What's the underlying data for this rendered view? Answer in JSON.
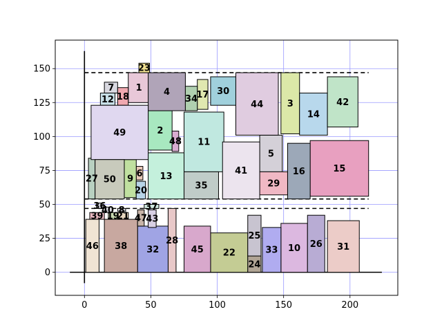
{
  "chart_data": {
    "type": "diagram",
    "title": "",
    "xlabel": "",
    "ylabel": "",
    "xlim": [
      -22,
      236
    ],
    "ylim": [
      -17,
      171
    ],
    "grid": true,
    "xticks": [
      0,
      50,
      100,
      150,
      200
    ],
    "yticks": [
      0,
      25,
      50,
      75,
      100,
      125,
      150
    ],
    "dashed_lines": [
      {
        "x0": 0,
        "x1": 214,
        "y": 147
      },
      {
        "x0": 0,
        "x1": 214,
        "y": 54
      },
      {
        "x0": 0,
        "x1": 214,
        "y": 47
      }
    ],
    "solid_lines": [
      {
        "x0": 0,
        "y0": -8,
        "x1": 0,
        "y1": 163
      },
      {
        "x0": -11,
        "y0": 0,
        "x1": 224,
        "y1": 0
      }
    ],
    "rects": [
      {
        "id": "1",
        "x": 33,
        "y": 125,
        "w": 16,
        "h": 22,
        "color": "#e8c8d8"
      },
      {
        "id": "2",
        "x": 48,
        "y": 90,
        "w": 18,
        "h": 29,
        "color": "#a8e8c0"
      },
      {
        "id": "3",
        "x": 148,
        "y": 102,
        "w": 14,
        "h": 45,
        "color": "#dce8a8"
      },
      {
        "id": "4",
        "x": 48,
        "y": 119,
        "w": 28,
        "h": 28,
        "color": "#b0a4b8"
      },
      {
        "id": "5",
        "x": 132,
        "y": 74,
        "w": 17,
        "h": 27,
        "color": "#d4d0d8"
      },
      {
        "id": "6",
        "x": 39,
        "y": 68,
        "w": 5,
        "h": 10,
        "color": "#e8c8b8"
      },
      {
        "id": "7",
        "x": 15,
        "y": 132,
        "w": 10,
        "h": 8,
        "color": "#d8d8e0"
      },
      {
        "id": "8",
        "x": 25,
        "y": 45,
        "w": 6,
        "h": 2,
        "color": "#e0e0e8"
      },
      {
        "id": "9",
        "x": 30,
        "y": 55,
        "w": 9,
        "h": 28,
        "color": "#c0e0a0"
      },
      {
        "id": "10",
        "x": 148,
        "y": 0,
        "w": 20,
        "h": 36,
        "color": "#dcb8e0"
      },
      {
        "id": "11",
        "x": 75,
        "y": 74,
        "w": 30,
        "h": 44,
        "color": "#c0e8e0"
      },
      {
        "id": "12",
        "x": 12,
        "y": 123,
        "w": 11,
        "h": 9,
        "color": "#c8e0e8"
      },
      {
        "id": "13",
        "x": 48,
        "y": 54,
        "w": 27,
        "h": 34,
        "color": "#c4f0dc"
      },
      {
        "id": "14",
        "x": 162,
        "y": 101,
        "w": 21,
        "h": 31,
        "color": "#b8d8ec"
      },
      {
        "id": "15",
        "x": 170,
        "y": 56,
        "w": 44,
        "h": 41,
        "color": "#e8a0c0"
      },
      {
        "id": "16",
        "x": 153,
        "y": 54,
        "w": 17,
        "h": 41,
        "color": "#9ca8b8"
      },
      {
        "id": "17",
        "x": 85,
        "y": 120,
        "w": 8,
        "h": 22,
        "color": "#e0e8b0"
      },
      {
        "id": "18",
        "x": 25,
        "y": 123,
        "w": 8,
        "h": 13,
        "color": "#f0a8b0"
      },
      {
        "id": "19",
        "x": 18,
        "y": 39,
        "w": 7,
        "h": 5,
        "color": "#c8d8b0"
      },
      {
        "id": "20",
        "x": 39,
        "y": 54,
        "w": 7,
        "h": 13,
        "color": "#b8d4e8"
      },
      {
        "id": "21",
        "x": 25,
        "y": 39,
        "w": 8,
        "h": 5,
        "color": "#e8d8c0"
      },
      {
        "id": "22",
        "x": 95,
        "y": 0,
        "w": 28,
        "h": 29,
        "color": "#c4cc94"
      },
      {
        "id": "23",
        "x": 41,
        "y": 147,
        "w": 8,
        "h": 7,
        "color": "#f0e090"
      },
      {
        "id": "24",
        "x": 123,
        "y": 0,
        "w": 10,
        "h": 12,
        "color": "#b0a494"
      },
      {
        "id": "25",
        "x": 123,
        "y": 12,
        "w": 10,
        "h": 30,
        "color": "#c8c4d0"
      },
      {
        "id": "26",
        "x": 168,
        "y": 0,
        "w": 13,
        "h": 42,
        "color": "#b8acd4"
      },
      {
        "id": "27",
        "x": 3,
        "y": 54,
        "w": 5,
        "h": 30,
        "color": "#b8d0c0"
      },
      {
        "id": "28",
        "x": 63,
        "y": 0,
        "w": 6,
        "h": 47,
        "color": "#e8c8c8"
      },
      {
        "id": "29",
        "x": 132,
        "y": 57,
        "w": 21,
        "h": 17,
        "color": "#f0b8c4"
      },
      {
        "id": "30",
        "x": 95,
        "y": 123,
        "w": 19,
        "h": 21,
        "color": "#a0d0dc"
      },
      {
        "id": "31",
        "x": 183,
        "y": 0,
        "w": 24,
        "h": 38,
        "color": "#ecccc8"
      },
      {
        "id": "32",
        "x": 40,
        "y": 0,
        "w": 23,
        "h": 34,
        "color": "#a0a4e4"
      },
      {
        "id": "33",
        "x": 134,
        "y": 0,
        "w": 14,
        "h": 33,
        "color": "#b0acf0"
      },
      {
        "id": "34",
        "x": 76,
        "y": 119,
        "w": 9,
        "h": 18,
        "color": "#b0d0b0"
      },
      {
        "id": "35",
        "x": 75,
        "y": 54,
        "w": 26,
        "h": 20,
        "color": "#c0ccc8"
      },
      {
        "id": "36",
        "x": 9,
        "y": 47,
        "w": 5,
        "h": 4,
        "color": "#ccccd8"
      },
      {
        "id": "37",
        "x": 45,
        "y": 47,
        "w": 11,
        "h": 3,
        "color": "#d0e8e0"
      },
      {
        "id": "38",
        "x": 15,
        "y": 0,
        "w": 25,
        "h": 39,
        "color": "#c8a8a0"
      },
      {
        "id": "39",
        "x": 4,
        "y": 39,
        "w": 11,
        "h": 5,
        "color": "#e8b8c0"
      },
      {
        "id": "40",
        "x": 14,
        "y": 44,
        "w": 7,
        "h": 4,
        "color": "#d8d8e0"
      },
      {
        "id": "41",
        "x": 104,
        "y": 54,
        "w": 28,
        "h": 42,
        "color": "#ece4ee"
      },
      {
        "id": "42",
        "x": 183,
        "y": 107,
        "w": 23,
        "h": 37,
        "color": "#c0e4c8"
      },
      {
        "id": "43",
        "x": 48,
        "y": 33,
        "w": 6,
        "h": 13,
        "color": "#d8d0e4"
      },
      {
        "id": "44",
        "x": 114,
        "y": 101,
        "w": 32,
        "h": 46,
        "color": "#e0cce0"
      },
      {
        "id": "45",
        "x": 75,
        "y": 0,
        "w": 20,
        "h": 34,
        "color": "#d8a8cc"
      },
      {
        "id": "46",
        "x": 1,
        "y": 0,
        "w": 10,
        "h": 39,
        "color": "#f0e4d4"
      },
      {
        "id": "47",
        "x": 40,
        "y": 34,
        "w": 5,
        "h": 12,
        "color": "#c8b4a8"
      },
      {
        "id": "48",
        "x": 66,
        "y": 89,
        "w": 5,
        "h": 15,
        "color": "#d8acd0"
      },
      {
        "id": "49",
        "x": 5,
        "y": 83,
        "w": 43,
        "h": 40,
        "color": "#e0d8f0"
      },
      {
        "id": "50",
        "x": 8,
        "y": 54,
        "w": 22,
        "h": 29,
        "color": "#c8cabc"
      }
    ]
  }
}
